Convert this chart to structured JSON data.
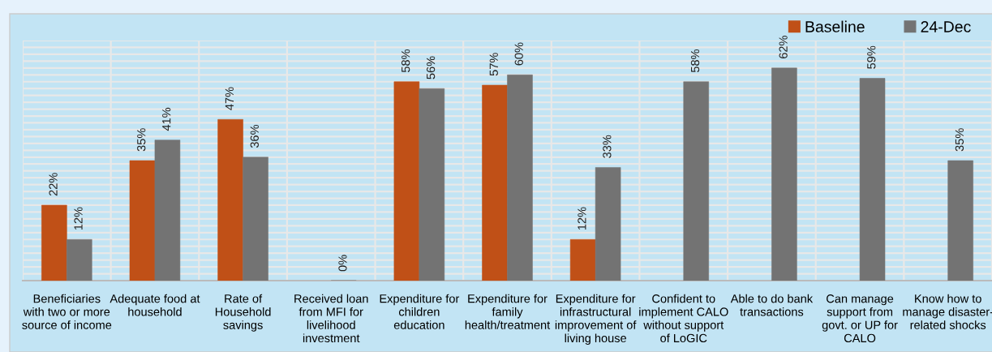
{
  "chart_data": {
    "type": "bar",
    "categories": [
      "Beneficiaries\nwith two or more\nsource of income",
      "Adequate food at\nhousehold",
      "Rate of\nHousehold\nsavings",
      "Received loan\nfrom MFI for\nlivelihood\ninvestment",
      "Expenditure for\nchildren\neducation",
      "Expenditure for\nfamily\nhealth/treatment",
      "Expenditure for\ninfrastructural\nimprovement of\nliving house",
      "Confident to\nimplement CALO\nwithout support\nof LoGIC",
      "Able to do bank\ntransactions",
      "Can manage\nsupport from\ngovt. or UP for\nCALO",
      "Know how to\nmanage disaster-\nrelated shocks"
    ],
    "series": [
      {
        "name": "Baseline",
        "color": "#c05017",
        "values": [
          22,
          35,
          47,
          null,
          58,
          57,
          12,
          null,
          null,
          null,
          null
        ],
        "value_labels": [
          "22%",
          "35%",
          "47%",
          null,
          "58%",
          "57%",
          "12%",
          null,
          null,
          null,
          null
        ]
      },
      {
        "name": "24-Dec",
        "color": "#737373",
        "values": [
          12,
          41,
          36,
          0,
          56,
          60,
          33,
          58,
          62,
          59,
          35
        ],
        "value_labels": [
          "12%",
          "41%",
          "36%",
          "0%",
          "56%",
          "60%",
          "33%",
          "58%",
          "62%",
          "59%",
          "35%"
        ]
      }
    ],
    "ylim": [
      0,
      70
    ],
    "yticks": [
      {
        "value": 0,
        "label": null
      },
      {
        "value": 2,
        "label": null
      },
      {
        "value": 4,
        "label": null
      },
      {
        "value": 6,
        "label": null
      },
      {
        "value": 8,
        "label": null
      },
      {
        "value": 10,
        "label": null
      },
      {
        "value": 12,
        "label": null
      },
      {
        "value": 14,
        "label": null
      },
      {
        "value": 16,
        "label": null
      },
      {
        "value": 18,
        "label": null
      },
      {
        "value": 20,
        "label": null
      },
      {
        "value": 22,
        "label": null
      },
      {
        "value": 24,
        "label": null
      },
      {
        "value": 26,
        "label": null
      },
      {
        "value": 28,
        "label": null
      },
      {
        "value": 30,
        "label": null
      },
      {
        "value": 32,
        "label": null
      },
      {
        "value": 34,
        "label": null
      },
      {
        "value": 36,
        "label": null
      },
      {
        "value": 38,
        "label": null
      },
      {
        "value": 40,
        "label": null
      },
      {
        "value": 42,
        "label": null
      },
      {
        "value": 44,
        "label": null
      },
      {
        "value": 46,
        "label": null
      },
      {
        "value": 48,
        "label": null
      },
      {
        "value": 50,
        "label": null
      },
      {
        "value": 52,
        "label": null
      },
      {
        "value": 54,
        "label": null
      },
      {
        "value": 56,
        "label": null
      },
      {
        "value": 58,
        "label": null
      },
      {
        "value": 60,
        "label": null
      },
      {
        "value": 62,
        "label": null
      },
      {
        "value": 64,
        "label": null
      },
      {
        "value": 66,
        "label": null
      },
      {
        "value": 68,
        "label": null
      },
      {
        "value": 70,
        "label": null
      }
    ],
    "grid": true,
    "legend": "top right",
    "tick_labels": "x"
  }
}
